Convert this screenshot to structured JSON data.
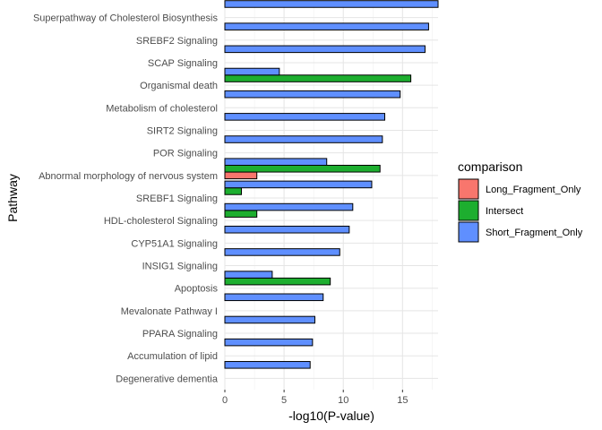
{
  "chart_data": {
    "type": "bar",
    "orientation": "horizontal",
    "xlabel": "-log10(P-value)",
    "ylabel": "Pathway",
    "xlim": [
      0,
      18
    ],
    "xticks": [
      0,
      5,
      10,
      15
    ],
    "grid": true,
    "legend": {
      "title": "comparison",
      "placement": "right",
      "entries": [
        "Long_Fragment_Only",
        "Intersect",
        "Short_Fragment_Only"
      ]
    },
    "colors": {
      "Long_Fragment_Only": "#F8766D",
      "Intersect": "#1DAE2F",
      "Short_Fragment_Only": "#5F8FFF"
    },
    "categories": [
      "Superpathway of Cholesterol Biosynthesis",
      "SREBF2 Signaling",
      "SCAP Signaling",
      "Organismal death",
      "Metabolism of cholesterol",
      "SIRT2 Signaling",
      "POR Signaling",
      "Abnormal morphology of nervous system",
      "SREBF1 Signaling",
      "HDL-cholesterol Signaling",
      "CYP51A1 Signaling",
      "INSIG1 Signaling",
      "Apoptosis",
      "Mevalonate Pathway I",
      "PPARA Signaling",
      "Accumulation of lipid",
      "Degenerative dementia"
    ],
    "series": [
      {
        "name": "Long_Fragment_Only",
        "values": [
          null,
          null,
          null,
          null,
          null,
          null,
          null,
          2.7,
          null,
          null,
          null,
          null,
          null,
          null,
          null,
          null,
          null
        ]
      },
      {
        "name": "Intersect",
        "values": [
          null,
          null,
          null,
          15.7,
          null,
          null,
          null,
          13.1,
          1.4,
          2.7,
          null,
          null,
          8.9,
          null,
          null,
          null,
          null
        ]
      },
      {
        "name": "Short_Fragment_Only",
        "values": [
          18.0,
          17.2,
          16.9,
          4.6,
          14.8,
          13.5,
          13.3,
          8.6,
          12.4,
          10.8,
          10.5,
          9.7,
          4.0,
          8.3,
          7.6,
          7.4,
          7.2
        ]
      }
    ]
  }
}
